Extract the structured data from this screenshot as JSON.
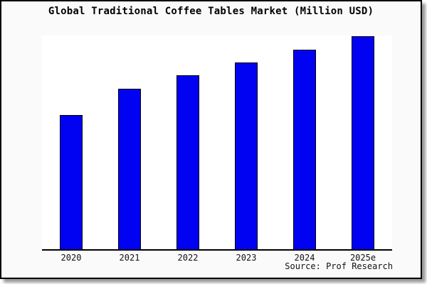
{
  "page": {
    "title": "Global Traditional Coffee Tables Market (Million USD)",
    "source_note": "Source: Prof Research"
  },
  "chart_data": {
    "type": "bar",
    "title": "Global Traditional Coffee Tables Market (Million USD)",
    "categories": [
      "2020",
      "2021",
      "2022",
      "2023",
      "2024",
      "2025e"
    ],
    "values": [
      62.8,
      75.4,
      81.7,
      87.7,
      93.7,
      100
    ],
    "units": "relative height, % of 2025e bar (no y-axis scale shown)",
    "xlabel": "",
    "ylabel": "",
    "ylim": [
      0,
      100
    ],
    "grid": false,
    "legend": false,
    "source_note": "Source: Prof Research",
    "colors": {
      "bar_fill": "#0202f2",
      "bar_border": "#000000",
      "page_background": "#fafafa",
      "plot_background": "#ffffff",
      "axis": "#000000",
      "text": "#000000"
    }
  }
}
